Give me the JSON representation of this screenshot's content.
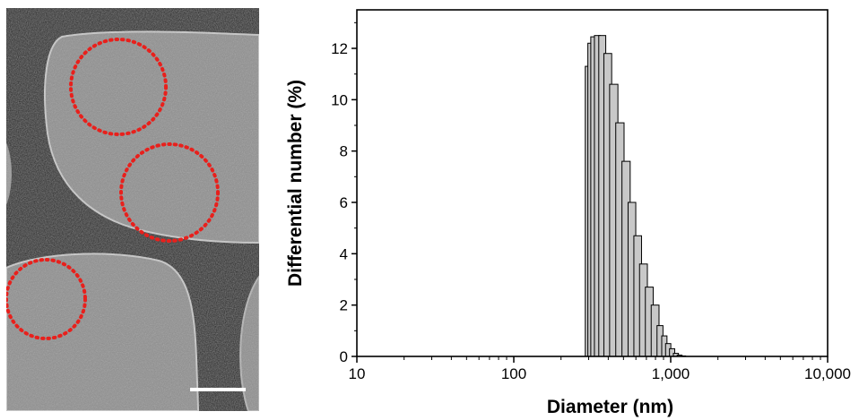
{
  "micrograph": {
    "background_color": "#5e5e5e",
    "membrane_color": "#1e1e1e",
    "hole_color": "#8f8f8f",
    "marker_color": "#e8201c",
    "scale_bar_color": "#ffffff",
    "circled_regions": 3
  },
  "chart_data": {
    "type": "bar",
    "title": "",
    "xlabel": "Diameter (nm)",
    "ylabel": "Differential number (%)",
    "x_scale": "log",
    "xlim": [
      10,
      10000
    ],
    "ylim": [
      0,
      13.5
    ],
    "x_tick_labels": [
      "10",
      "100",
      "1,000",
      "10,000"
    ],
    "x_tick_values": [
      10,
      100,
      1000,
      10000
    ],
    "y_tick_labels": [
      "0",
      "2",
      "4",
      "6",
      "8",
      "10",
      "12"
    ],
    "y_tick_values": [
      0,
      2,
      4,
      6,
      8,
      10,
      12
    ],
    "bar_fill": "#c8c8c8",
    "bar_stroke": "#000000",
    "grid": false,
    "legend": "none",
    "bins": [
      {
        "x": 291,
        "value": 11.3
      },
      {
        "x": 302,
        "value": 12.2
      },
      {
        "x": 317,
        "value": 12.45
      },
      {
        "x": 336,
        "value": 12.5
      },
      {
        "x": 360,
        "value": 12.5
      },
      {
        "x": 390,
        "value": 11.8
      },
      {
        "x": 426,
        "value": 10.6
      },
      {
        "x": 467,
        "value": 9.1
      },
      {
        "x": 511,
        "value": 7.6
      },
      {
        "x": 559,
        "value": 6.0
      },
      {
        "x": 606,
        "value": 4.7
      },
      {
        "x": 660,
        "value": 3.6
      },
      {
        "x": 719,
        "value": 2.7
      },
      {
        "x": 783,
        "value": 2.0
      },
      {
        "x": 853,
        "value": 1.2
      },
      {
        "x": 900,
        "value": 0.8
      },
      {
        "x": 955,
        "value": 0.5
      },
      {
        "x": 1010,
        "value": 0.3
      },
      {
        "x": 1070,
        "value": 0.12
      },
      {
        "x": 1130,
        "value": 0.05
      },
      {
        "x": 1190,
        "value": 0.02
      }
    ]
  }
}
